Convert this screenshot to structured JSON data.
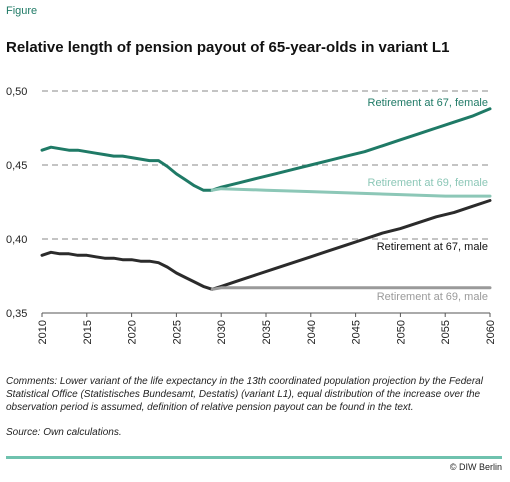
{
  "figure_label": "Figure",
  "footer": {
    "comments": "Comments: Lower variant of the life expectancy in the 13th coordinated population projection by the Federal Statistical Office (Statistisches Bundesamt, Destatis) (variant L1), equal distribution of the increase over the observation period is assumed, definition of relative pension payout can be found in the text.",
    "source": "Source: Own calculations.",
    "credit": "© DIW Berlin"
  },
  "chart_data": {
    "type": "line",
    "title": "Relative length of pension payout of 65-year-olds in variant L1",
    "xlabel": "",
    "ylabel": "",
    "xlim": [
      2010,
      2060
    ],
    "ylim": [
      0.35,
      0.5
    ],
    "yticks": [
      0.35,
      0.4,
      0.45,
      0.5
    ],
    "ytick_labels": [
      "0,35",
      "0,40",
      "0,45",
      "0,50"
    ],
    "xticks": [
      2010,
      2015,
      2020,
      2025,
      2030,
      2035,
      2040,
      2045,
      2050,
      2055,
      2060
    ],
    "grid": "horizontal dashed",
    "series": [
      {
        "name": "Retirement at 67, female",
        "color": "#1f7a66",
        "x": [
          2010,
          2011,
          2012,
          2013,
          2014,
          2015,
          2016,
          2017,
          2018,
          2019,
          2020,
          2021,
          2022,
          2023,
          2024,
          2025,
          2026,
          2027,
          2028,
          2029,
          2030,
          2032,
          2034,
          2036,
          2038,
          2040,
          2042,
          2044,
          2046,
          2048,
          2050,
          2052,
          2054,
          2056,
          2058,
          2060
        ],
        "values": [
          0.46,
          0.462,
          0.461,
          0.46,
          0.46,
          0.459,
          0.458,
          0.457,
          0.456,
          0.456,
          0.455,
          0.454,
          0.453,
          0.453,
          0.449,
          0.444,
          0.44,
          0.436,
          0.433,
          0.433,
          0.435,
          0.438,
          0.441,
          0.444,
          0.447,
          0.45,
          0.453,
          0.456,
          0.459,
          0.463,
          0.467,
          0.471,
          0.475,
          0.479,
          0.483,
          0.488
        ]
      },
      {
        "name": "Retirement at 69, female",
        "color": "#8cc7b7",
        "x": [
          2029,
          2030,
          2035,
          2040,
          2045,
          2050,
          2055,
          2060
        ],
        "values": [
          0.433,
          0.434,
          0.433,
          0.432,
          0.431,
          0.43,
          0.429,
          0.429
        ]
      },
      {
        "name": "Retirement at 67, male",
        "color": "#2b2b2b",
        "x": [
          2010,
          2011,
          2012,
          2013,
          2014,
          2015,
          2016,
          2017,
          2018,
          2019,
          2020,
          2021,
          2022,
          2023,
          2024,
          2025,
          2026,
          2027,
          2028,
          2029,
          2030,
          2032,
          2034,
          2036,
          2038,
          2040,
          2042,
          2044,
          2046,
          2048,
          2050,
          2052,
          2054,
          2056,
          2058,
          2060
        ],
        "values": [
          0.389,
          0.391,
          0.39,
          0.39,
          0.389,
          0.389,
          0.388,
          0.387,
          0.387,
          0.386,
          0.386,
          0.385,
          0.385,
          0.384,
          0.381,
          0.377,
          0.374,
          0.371,
          0.368,
          0.366,
          0.368,
          0.372,
          0.376,
          0.38,
          0.384,
          0.388,
          0.392,
          0.396,
          0.4,
          0.404,
          0.407,
          0.411,
          0.415,
          0.418,
          0.422,
          0.426
        ]
      },
      {
        "name": "Retirement at 69, male",
        "color": "#9a9a9a",
        "x": [
          2029,
          2030,
          2035,
          2040,
          2045,
          2050,
          2055,
          2060
        ],
        "values": [
          0.366,
          0.367,
          0.367,
          0.367,
          0.367,
          0.367,
          0.367,
          0.367
        ]
      }
    ]
  }
}
